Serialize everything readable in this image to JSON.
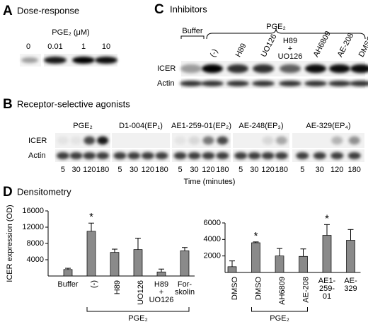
{
  "panels": {
    "A": {
      "letter": "A",
      "title": "Dose-response",
      "treatment": "PGE₂ (μM)",
      "lanes": [
        "0",
        "0.01",
        "1",
        "10"
      ]
    },
    "B": {
      "letter": "B",
      "title": "Receptor-selective agonists",
      "rows": [
        "ICER",
        "Actin"
      ],
      "groups": [
        "PGE₂",
        "D1-004(EP₁)",
        "AE1-259-01(EP₂)",
        "AE-248(EP₃)",
        "AE-329(EP₄)"
      ],
      "time_points": [
        "5",
        "30",
        "120",
        "180"
      ],
      "x_label": "Time (minutes)"
    },
    "C": {
      "letter": "C",
      "title": "Inhibitors",
      "buffer": "Buffer",
      "treatment": "PGE₂",
      "lanes": [
        "(-)",
        "H89",
        "UO126",
        "H89\n+\nUO126",
        "AH6809",
        "AE-208",
        "DMSO"
      ],
      "rows": [
        "ICER",
        "Actin"
      ]
    },
    "D": {
      "letter": "D",
      "title": "Densitometry"
    }
  },
  "chart_data": [
    {
      "type": "bar",
      "y_label": "ICER expression (OD)",
      "categories": [
        "Buffer",
        "(-)",
        "H89",
        "UO126",
        "H89\n+\nUO126",
        "For-\nskolin"
      ],
      "series": [
        {
          "color": "#8a8a8a",
          "values": [
            1600,
            11000,
            5800,
            6500,
            1000,
            6200
          ],
          "errors": [
            300,
            2000,
            800,
            2800,
            700,
            800
          ]
        }
      ],
      "ylim": [
        0,
        16000
      ],
      "yticks": [
        4000,
        8000,
        12000,
        16000
      ],
      "significance_mark": "*",
      "significant": [
        false,
        true,
        false,
        false,
        false,
        false
      ],
      "group_label": "PGE₂"
    },
    {
      "type": "bar",
      "categories": [
        "DMSO",
        "DMSO",
        "AH6809",
        "AE-208",
        "AE1-\n259-\n01",
        "AE-\n329"
      ],
      "series": [
        {
          "color": "#8a8a8a",
          "values": [
            700,
            3600,
            2000,
            1950,
            4500,
            3900
          ],
          "errors": [
            700,
            100,
            900,
            900,
            1300,
            1300
          ]
        }
      ],
      "ylim": [
        0,
        6000
      ],
      "yticks": [
        2000,
        4000,
        6000
      ],
      "significance_mark": "*",
      "significant": [
        false,
        true,
        false,
        false,
        true,
        false
      ],
      "group_label": "PGE₂"
    }
  ]
}
